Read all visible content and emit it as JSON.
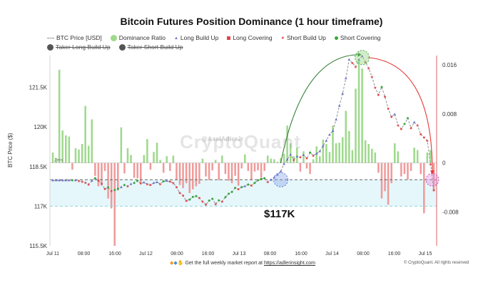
{
  "chart_data": {
    "type": "bar+line+scatter",
    "title": "Bitcoin Futures Position Dominance (1 hour timeframe)",
    "ylabel": "BTC Price ($)",
    "ylim_left": [
      115500,
      122700
    ],
    "left_ticks": [
      "115.5K",
      "117K",
      "118.5K",
      "120K",
      "121.5K"
    ],
    "left_tick_values": [
      115500,
      117000,
      118500,
      120000,
      121500
    ],
    "ylim_right": [
      -0.0135,
      0.0175
    ],
    "right_ticks": [
      "-0.008",
      "0",
      "0.008",
      "0.016"
    ],
    "right_tick_values": [
      -0.008,
      0,
      0.008,
      0.016
    ],
    "zero_label": "Zero",
    "x_ticks": [
      "Jul 11",
      "08:00",
      "16:00",
      "Jul 12",
      "08:00",
      "16:00",
      "Jul 13",
      "08:00",
      "16:00",
      "Jul 14",
      "08:00",
      "16:00",
      "Jul 15"
    ],
    "reference_levels": [
      {
        "name": "upper",
        "value": 118000,
        "style": "dashed",
        "color": "#666666"
      },
      {
        "name": "lower",
        "value": 117000,
        "style": "dashed",
        "color": "#8fd3dc"
      }
    ],
    "price": [
      117980,
      117980,
      117980,
      117980,
      117980,
      117980,
      117980,
      117980,
      117960,
      117930,
      117900,
      117830,
      117960,
      118060,
      117970,
      117850,
      117650,
      117710,
      117570,
      117610,
      117660,
      117720,
      117800,
      117760,
      117840,
      117880,
      117960,
      117860,
      117900,
      117840,
      117800,
      117880,
      117910,
      117840,
      117940,
      117960,
      117930,
      117880,
      117720,
      117500,
      117400,
      117200,
      117250,
      117350,
      117380,
      117310,
      117180,
      117060,
      117210,
      117280,
      117080,
      117220,
      117180,
      117340,
      117470,
      117540,
      117690,
      117640,
      117720,
      117760,
      117820,
      117780,
      117880,
      117980,
      118030,
      118060,
      117920,
      118000,
      118090,
      118190,
      118320,
      118600,
      118770,
      118950,
      118760,
      118880,
      118850,
      118940,
      118810,
      119030,
      118920,
      118990,
      119080,
      119280,
      119480,
      119710,
      119850,
      120280,
      120800,
      121260,
      121840,
      122550,
      122420,
      122280,
      122550,
      122680,
      122450,
      122220,
      121900,
      121500,
      121210,
      121510,
      121140,
      120690,
      120380,
      120480,
      120070,
      119920,
      120110,
      120330,
      119950,
      120180,
      120060,
      119720,
      119600,
      119480,
      118600,
      117600
    ],
    "dominance": [
      0.0017,
      0.0008,
      0.0152,
      0.0053,
      0.0045,
      0.0043,
      -0.0011,
      0.0024,
      0.0022,
      0.0031,
      0.0093,
      0.0028,
      0.0071,
      -0.0021,
      -0.0038,
      -0.0037,
      -0.0013,
      -0.0058,
      -0.0074,
      -0.0135,
      -0.0045,
      0.0058,
      -0.0017,
      0.0024,
      0.0013,
      -0.0024,
      -0.0025,
      -0.0032,
      0.0013,
      0.0039,
      -0.0011,
      0.0018,
      0.0033,
      0.0005,
      -0.0016,
      0.0011,
      -0.0013,
      0.0012,
      -0.0028,
      -0.0036,
      -0.0041,
      -0.0033,
      -0.0049,
      -0.0043,
      -0.0038,
      -0.0034,
      0.0007,
      -0.0022,
      -0.0028,
      -0.0012,
      0.0005,
      -0.0028,
      0.0012,
      -0.0018,
      -0.0029,
      -0.0033,
      -0.0021,
      -0.0037,
      -0.0009,
      0.0014,
      -0.0013,
      -0.0028,
      -0.0014,
      -0.0012,
      -0.0024,
      -0.0013,
      0.0012,
      0.0007,
      0.0006,
      0.0002,
      0.0008,
      0.0015,
      0.0061,
      0.0032,
      0.0011,
      0.0025,
      -0.0014,
      0.0019,
      -0.0009,
      -0.0018,
      0.0006,
      0.0027,
      0.0011,
      0.0038,
      0.0031,
      0.0018,
      0.0061,
      0.0032,
      0.0033,
      0.0042,
      0.0085,
      0.0052,
      0.0021,
      0.0121,
      0.0168,
      0.0154,
      0.0037,
      0.0031,
      0.0023,
      0.0017,
      -0.0016,
      -0.0058,
      -0.0046,
      -0.0068,
      -0.0033,
      0.0032,
      0.0019,
      -0.0022,
      -0.0018,
      -0.0027,
      -0.0013,
      0.0025,
      0.0021,
      -0.0018,
      -0.0082,
      0.0017,
      0.0021,
      -0.0045
    ],
    "series": [
      {
        "name": "BTC Price [USD]",
        "kind": "line",
        "color": "#8f8f8f",
        "style": "dashed"
      },
      {
        "name": "Dominance Ratio",
        "kind": "bar",
        "color_positive": "#9ed98c",
        "color_negative": "#ef9a9a"
      },
      {
        "name": "Long Build Up",
        "kind": "marker",
        "color": "#6b72c9",
        "shape": "triangle"
      },
      {
        "name": "Long Covering",
        "kind": "marker",
        "color": "#e0474c",
        "shape": "square"
      },
      {
        "name": "Short Build Up",
        "kind": "marker",
        "color": "#e0474c",
        "shape": "star"
      },
      {
        "name": "Short Covering",
        "kind": "marker",
        "color": "#3aa53a",
        "shape": "circle"
      },
      {
        "name": "Taker Long Build Up",
        "kind": "marker",
        "color": "#555555",
        "hidden": true
      },
      {
        "name": "Taker Short Build Up",
        "kind": "marker",
        "color": "#555555",
        "hidden": true
      }
    ],
    "grid": false,
    "legend_position": "top"
  },
  "annotation": {
    "price_label": "$117K"
  },
  "watermark": {
    "line1": "@AxelAdlerJr",
    "line2": "CryptoQuant"
  },
  "footer": {
    "text_prefix": "Get the full weekly market report at",
    "link_text": "https://adlerinsight.com",
    "credit": "© CryptoQuant. All rights reserved"
  },
  "colors": {
    "up_arrow": "#2e7d32",
    "down_arrow": "#e53935",
    "shade": "#e6f7fb"
  }
}
